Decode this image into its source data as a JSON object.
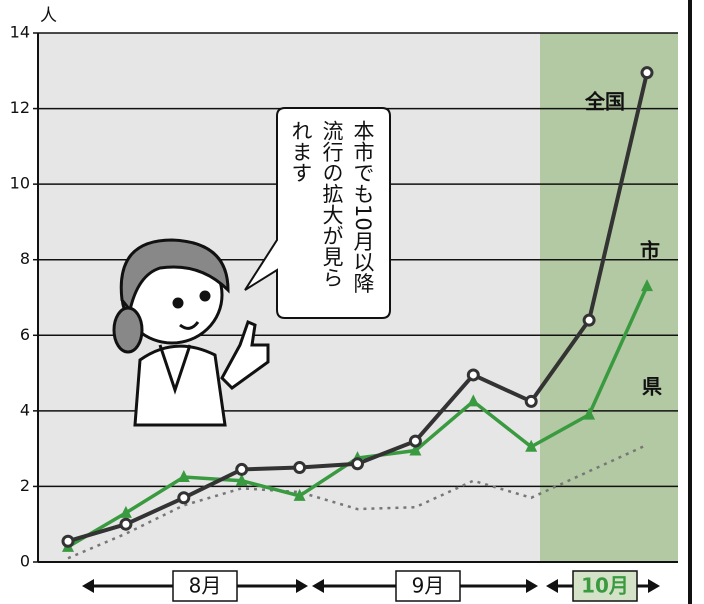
{
  "chart_data": {
    "type": "line",
    "y_unit": "人",
    "categories": [
      null,
      null,
      null,
      null,
      null,
      null,
      null,
      null,
      null,
      null,
      null
    ],
    "series": [
      {
        "name": "全国",
        "color": "#333333",
        "values": [
          0.55,
          1.0,
          1.7,
          2.45,
          2.5,
          2.6,
          3.2,
          4.95,
          4.25,
          6.4,
          12.95
        ]
      },
      {
        "name": "市",
        "color": "#3a9a40",
        "values": [
          0.4,
          1.3,
          2.25,
          2.15,
          1.75,
          2.75,
          2.95,
          4.25,
          3.05,
          3.9,
          7.3
        ]
      },
      {
        "name": "県",
        "color": "#777777",
        "values": [
          0.1,
          0.75,
          1.5,
          1.95,
          1.85,
          1.4,
          1.45,
          2.15,
          1.7,
          2.4,
          3.1
        ]
      }
    ],
    "ylim": [
      0,
      14
    ],
    "yticks": [
      0,
      2,
      4,
      6,
      8,
      10,
      12,
      14
    ],
    "grid": true,
    "months": [
      "8月",
      "9月",
      "10月"
    ],
    "annotation": [
      "本市でも10月以降",
      "流行の拡大が見ら",
      "れます"
    ]
  }
}
